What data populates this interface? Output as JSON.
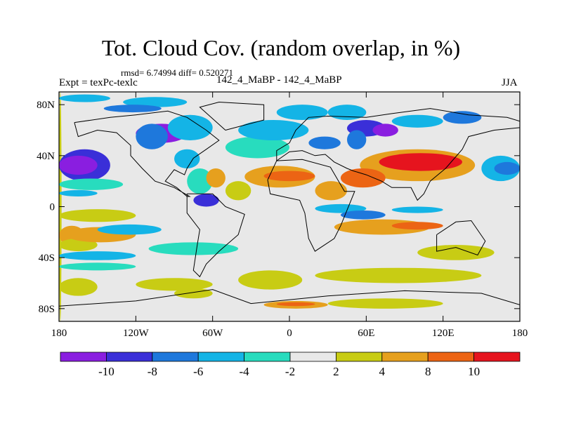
{
  "header": {
    "title": "Tot. Cloud Cov. (random overlap, in %)",
    "stats": "rmsd= 6.74994 diff= 0.520271",
    "experiment": "Expt = texPc-texlc",
    "case": "142_4_MaBP - 142_4_MaBP",
    "season": "JJA"
  },
  "chart_data": {
    "type": "heatmap",
    "title": "Tot. Cloud Cov. (random overlap, in %)",
    "subtitle": "142_4_MaBP - 142_4_MaBP",
    "stats": {
      "rmsd": 6.74994,
      "diff": 0.520271
    },
    "xlim": [
      -180,
      180
    ],
    "ylim": [
      -90,
      90
    ],
    "x_ticks": [
      {
        "value": -180,
        "label": "180"
      },
      {
        "value": -120,
        "label": "120W"
      },
      {
        "value": -60,
        "label": "60W"
      },
      {
        "value": 0,
        "label": "0"
      },
      {
        "value": 60,
        "label": "60E"
      },
      {
        "value": 120,
        "label": "120E"
      },
      {
        "value": 180,
        "label": "180"
      }
    ],
    "y_ticks": [
      {
        "value": 80,
        "label": "80N"
      },
      {
        "value": 40,
        "label": "40N"
      },
      {
        "value": 0,
        "label": "0"
      },
      {
        "value": -40,
        "label": "40S"
      },
      {
        "value": -80,
        "label": "80S"
      }
    ],
    "colorbar": {
      "levels": [
        -10,
        -8,
        -6,
        -4,
        -2,
        2,
        4,
        8,
        10
      ],
      "labels": [
        "-10",
        "-8",
        "-6",
        "-4",
        "-2",
        "2",
        "4",
        "8",
        "10"
      ],
      "colors": [
        "#8a1ee0",
        "#3a2fd8",
        "#1e78dc",
        "#14b4e6",
        "#28dcbe",
        "#e8e8e8",
        "#c8cc14",
        "#e6a01e",
        "#ec6414",
        "#e6141e"
      ]
    },
    "regions": [
      {
        "cls": 6,
        "lon": [
          -180,
          -178
        ],
        "lat": [
          -90,
          90
        ]
      },
      {
        "cls": 1,
        "lon": [
          -180,
          -140
        ],
        "lat": [
          20,
          45
        ]
      },
      {
        "cls": 0,
        "lon": [
          -180,
          -150
        ],
        "lat": [
          25,
          40
        ]
      },
      {
        "cls": 4,
        "lon": [
          -180,
          -130
        ],
        "lat": [
          13,
          22
        ]
      },
      {
        "cls": 3,
        "lon": [
          -180,
          -150
        ],
        "lat": [
          8,
          13
        ]
      },
      {
        "cls": 6,
        "lon": [
          -180,
          -120
        ],
        "lat": [
          -12,
          -2
        ]
      },
      {
        "cls": 7,
        "lon": [
          -180,
          -160
        ],
        "lat": [
          -30,
          -15
        ]
      },
      {
        "cls": 6,
        "lon": [
          -180,
          -150
        ],
        "lat": [
          -35,
          -25
        ]
      },
      {
        "cls": 7,
        "lon": [
          -175,
          -120
        ],
        "lat": [
          -28,
          -16
        ]
      },
      {
        "cls": 3,
        "lon": [
          -180,
          -120
        ],
        "lat": [
          -42,
          -35
        ]
      },
      {
        "cls": 6,
        "lon": [
          -180,
          -150
        ],
        "lat": [
          -70,
          -56
        ]
      },
      {
        "cls": 6,
        "lon": [
          -120,
          -60
        ],
        "lat": [
          -66,
          -56
        ]
      },
      {
        "cls": 3,
        "lon": [
          -150,
          -100
        ],
        "lat": [
          -22,
          -14
        ]
      },
      {
        "cls": 4,
        "lon": [
          -180,
          -120
        ],
        "lat": [
          -50,
          -44
        ]
      },
      {
        "cls": 3,
        "lon": [
          -180,
          -140
        ],
        "lat": [
          82,
          88
        ]
      },
      {
        "cls": 3,
        "lon": [
          -130,
          -80
        ],
        "lat": [
          78,
          86
        ]
      },
      {
        "cls": 2,
        "lon": [
          -145,
          -100
        ],
        "lat": [
          74,
          80
        ]
      },
      {
        "cls": 0,
        "lon": [
          -120,
          -80
        ],
        "lat": [
          50,
          65
        ]
      },
      {
        "cls": 2,
        "lon": [
          -120,
          -95
        ],
        "lat": [
          45,
          65
        ]
      },
      {
        "cls": 3,
        "lon": [
          -95,
          -60
        ],
        "lat": [
          52,
          72
        ]
      },
      {
        "cls": 3,
        "lon": [
          -90,
          -70
        ],
        "lat": [
          30,
          45
        ]
      },
      {
        "cls": 4,
        "lon": [
          -80,
          -60
        ],
        "lat": [
          10,
          30
        ]
      },
      {
        "cls": 1,
        "lon": [
          -75,
          -55
        ],
        "lat": [
          0,
          10
        ]
      },
      {
        "cls": 7,
        "lon": [
          -65,
          -50
        ],
        "lat": [
          15,
          30
        ]
      },
      {
        "cls": 6,
        "lon": [
          -50,
          -30
        ],
        "lat": [
          5,
          20
        ]
      },
      {
        "cls": 7,
        "lon": [
          -35,
          20
        ],
        "lat": [
          15,
          32
        ]
      },
      {
        "cls": 8,
        "lon": [
          -20,
          20
        ],
        "lat": [
          20,
          28
        ]
      },
      {
        "cls": 4,
        "lon": [
          -50,
          0
        ],
        "lat": [
          38,
          55
        ]
      },
      {
        "cls": 3,
        "lon": [
          -40,
          15
        ],
        "lat": [
          52,
          68
        ]
      },
      {
        "cls": 2,
        "lon": [
          15,
          40
        ],
        "lat": [
          45,
          55
        ]
      },
      {
        "cls": 3,
        "lon": [
          -10,
          30
        ],
        "lat": [
          68,
          80
        ]
      },
      {
        "cls": 3,
        "lon": [
          30,
          60
        ],
        "lat": [
          68,
          80
        ]
      },
      {
        "cls": 1,
        "lon": [
          45,
          75
        ],
        "lat": [
          55,
          68
        ]
      },
      {
        "cls": 0,
        "lon": [
          65,
          85
        ],
        "lat": [
          55,
          65
        ]
      },
      {
        "cls": 2,
        "lon": [
          45,
          60
        ],
        "lat": [
          45,
          60
        ]
      },
      {
        "cls": 3,
        "lon": [
          80,
          120
        ],
        "lat": [
          62,
          72
        ]
      },
      {
        "cls": 2,
        "lon": [
          120,
          150
        ],
        "lat": [
          65,
          75
        ]
      },
      {
        "cls": 7,
        "lon": [
          55,
          145
        ],
        "lat": [
          20,
          45
        ]
      },
      {
        "cls": 9,
        "lon": [
          70,
          135
        ],
        "lat": [
          28,
          42
        ]
      },
      {
        "cls": 8,
        "lon": [
          40,
          75
        ],
        "lat": [
          15,
          30
        ]
      },
      {
        "cls": 7,
        "lon": [
          20,
          45
        ],
        "lat": [
          5,
          20
        ]
      },
      {
        "cls": 3,
        "lon": [
          20,
          60
        ],
        "lat": [
          -5,
          2
        ]
      },
      {
        "cls": 2,
        "lon": [
          40,
          75
        ],
        "lat": [
          -10,
          -3
        ]
      },
      {
        "cls": 3,
        "lon": [
          80,
          120
        ],
        "lat": [
          -5,
          0
        ]
      },
      {
        "cls": 7,
        "lon": [
          35,
          110
        ],
        "lat": [
          -22,
          -10
        ]
      },
      {
        "cls": 8,
        "lon": [
          80,
          120
        ],
        "lat": [
          -18,
          -12
        ]
      },
      {
        "cls": 6,
        "lon": [
          100,
          160
        ],
        "lat": [
          -42,
          -30
        ]
      },
      {
        "cls": 3,
        "lon": [
          150,
          180
        ],
        "lat": [
          20,
          40
        ]
      },
      {
        "cls": 2,
        "lon": [
          160,
          180
        ],
        "lat": [
          25,
          35
        ]
      },
      {
        "cls": 4,
        "lon": [
          -110,
          -40
        ],
        "lat": [
          -38,
          -28
        ]
      },
      {
        "cls": 6,
        "lon": [
          -40,
          10
        ],
        "lat": [
          -65,
          -50
        ]
      },
      {
        "cls": 6,
        "lon": [
          20,
          150
        ],
        "lat": [
          -60,
          -48
        ]
      },
      {
        "cls": 6,
        "lon": [
          -90,
          -60
        ],
        "lat": [
          -72,
          -64
        ]
      },
      {
        "cls": 7,
        "lon": [
          -20,
          30
        ],
        "lat": [
          -80,
          -74
        ]
      },
      {
        "cls": 6,
        "lon": [
          30,
          120
        ],
        "lat": [
          -80,
          -72
        ]
      },
      {
        "cls": 8,
        "lon": [
          -10,
          20
        ],
        "lat": [
          -78,
          -75
        ]
      }
    ]
  }
}
